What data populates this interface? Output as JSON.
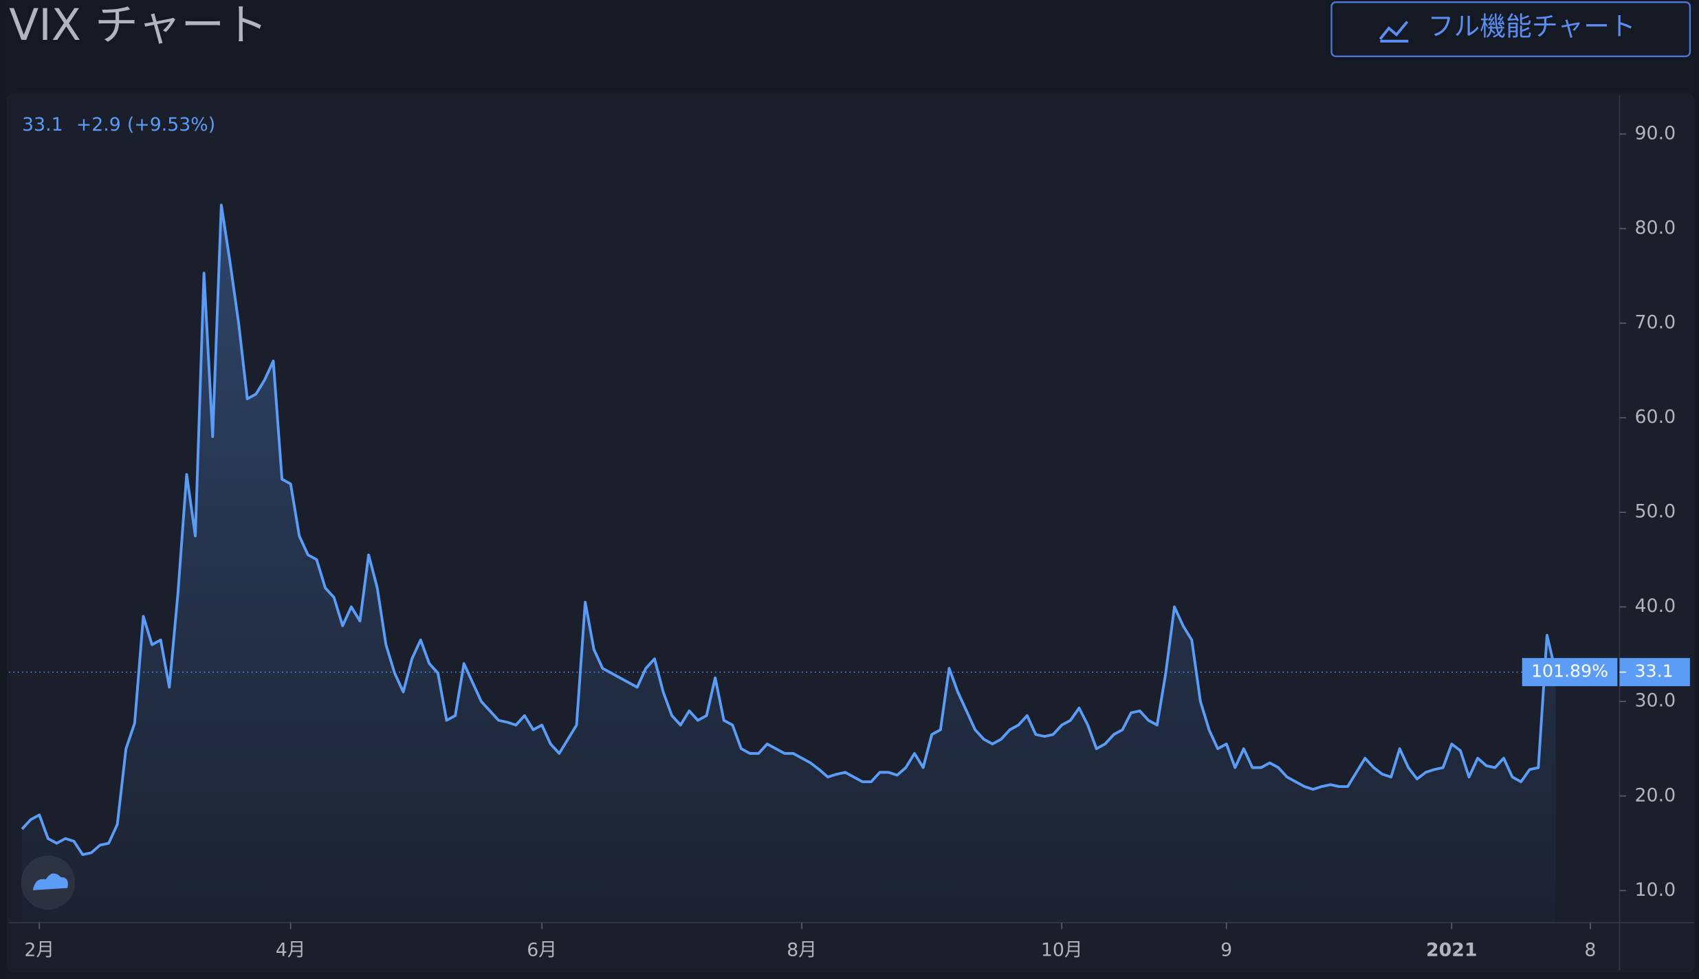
{
  "chart_data": {
    "type": "area",
    "title": "VIX チャート",
    "button": "フル機能チャート",
    "quote": {
      "last": "33.1",
      "change": "+2.9",
      "change_pct": "(+9.53%)"
    },
    "price_line": {
      "value": 33.1,
      "pct_label": "101.89%"
    },
    "color": "#5b9cf6",
    "categories": [
      null,
      null,
      "2月",
      null,
      null,
      null,
      null,
      null,
      null,
      null,
      null,
      null,
      null,
      null,
      null,
      null,
      null,
      null,
      null,
      null,
      null,
      null,
      null,
      null,
      null,
      null,
      null,
      null,
      null,
      null,
      null,
      "4月",
      null,
      null,
      null,
      null,
      null,
      null,
      null,
      null,
      null,
      null,
      null,
      null,
      null,
      null,
      null,
      null,
      null,
      null,
      null,
      null,
      null,
      null,
      null,
      null,
      null,
      null,
      null,
      null,
      "6月",
      null,
      null,
      null,
      null,
      null,
      null,
      null,
      null,
      null,
      null,
      null,
      null,
      null,
      null,
      null,
      null,
      null,
      null,
      null,
      null,
      null,
      null,
      null,
      null,
      null,
      null,
      null,
      null,
      null,
      "8月",
      null,
      null,
      null,
      null,
      null,
      null,
      null,
      null,
      null,
      null,
      null,
      null,
      null,
      null,
      null,
      null,
      null,
      null,
      null,
      null,
      null,
      null,
      null,
      null,
      null,
      null,
      null,
      null,
      null,
      "10月",
      null,
      null,
      null,
      null,
      null,
      null,
      null,
      null,
      null,
      null,
      null,
      null,
      null,
      null,
      null,
      null,
      null,
      null,
      "9",
      null,
      null,
      null,
      null,
      null,
      null,
      null,
      null,
      null,
      null,
      null,
      null,
      null,
      null,
      null,
      null,
      null,
      null,
      null,
      null,
      null,
      null,
      null,
      null,
      null,
      "2021",
      null,
      null,
      null,
      null,
      null,
      null,
      null,
      null,
      null,
      null,
      null,
      null,
      null,
      null,
      null,
      "8"
    ],
    "values": [
      16.5,
      17.5,
      18.0,
      15.5,
      15.0,
      15.5,
      15.2,
      13.8,
      14.0,
      14.8,
      15.0,
      17.0,
      25.0,
      27.7,
      39.0,
      36.0,
      36.5,
      31.5,
      41.5,
      54.0,
      47.5,
      75.3,
      58.0,
      82.5,
      76.5,
      70.0,
      62.0,
      62.5,
      64.0,
      66.0,
      53.5,
      53.0,
      47.5,
      45.5,
      45.0,
      42.0,
      41.0,
      38.0,
      40.0,
      38.5,
      45.5,
      42.0,
      36.0,
      33.0,
      31.0,
      34.5,
      36.5,
      34.0,
      33.0,
      28.0,
      28.5,
      34.0,
      32.0,
      30.0,
      29.0,
      28.0,
      27.8,
      27.5,
      28.5,
      27.0,
      27.5,
      25.5,
      24.5,
      26.0,
      27.5,
      40.5,
      35.5,
      33.5,
      33.0,
      32.5,
      32.0,
      31.5,
      33.5,
      34.5,
      31.0,
      28.5,
      27.5,
      29.0,
      28.0,
      28.5,
      32.5,
      28.0,
      27.5,
      25.0,
      24.5,
      24.5,
      25.5,
      25.0,
      24.5,
      24.5,
      24.0,
      23.5,
      22.8,
      22.0,
      22.3,
      22.5,
      22.0,
      21.5,
      21.5,
      22.5,
      22.5,
      22.2,
      23.0,
      24.5,
      23.0,
      26.5,
      27.0,
      33.5,
      31.0,
      29.0,
      27.0,
      26.0,
      25.5,
      26.0,
      27.0,
      27.5,
      28.5,
      26.5,
      26.3,
      26.5,
      27.5,
      28.0,
      29.3,
      27.5,
      25.0,
      25.5,
      26.5,
      27.0,
      28.8,
      29.0,
      28.0,
      27.5,
      33.0,
      40.0,
      38.0,
      36.5,
      30.0,
      27.0,
      25.0,
      25.5,
      23.0,
      25.0,
      23.0,
      23.0,
      23.5,
      23.0,
      22.0,
      21.5,
      21.0,
      20.7,
      21.0,
      21.2,
      21.0,
      21.0,
      22.5,
      24.0,
      23.0,
      22.3,
      22.0,
      25.0,
      23.0,
      21.8,
      22.5,
      22.8,
      23.0,
      25.5,
      24.8,
      22.0,
      24.0,
      23.2,
      23.0,
      24.0,
      22.0,
      21.5,
      22.8,
      23.0,
      37.0,
      33.1,
      null,
      null,
      null,
      null
    ],
    "ylim": [
      6.6,
      94.1
    ],
    "yticks": [
      {
        "value": 10,
        "label": "10.0"
      },
      {
        "value": 20,
        "label": "20.0"
      },
      {
        "value": 30,
        "label": "30.0"
      },
      {
        "value": 40,
        "label": "40.0"
      },
      {
        "value": 50,
        "label": "50.0"
      },
      {
        "value": 60,
        "label": "60.0"
      },
      {
        "value": 70,
        "label": "70.0"
      },
      {
        "value": 80,
        "label": "80.0"
      },
      {
        "value": 90,
        "label": "90.0"
      }
    ]
  }
}
